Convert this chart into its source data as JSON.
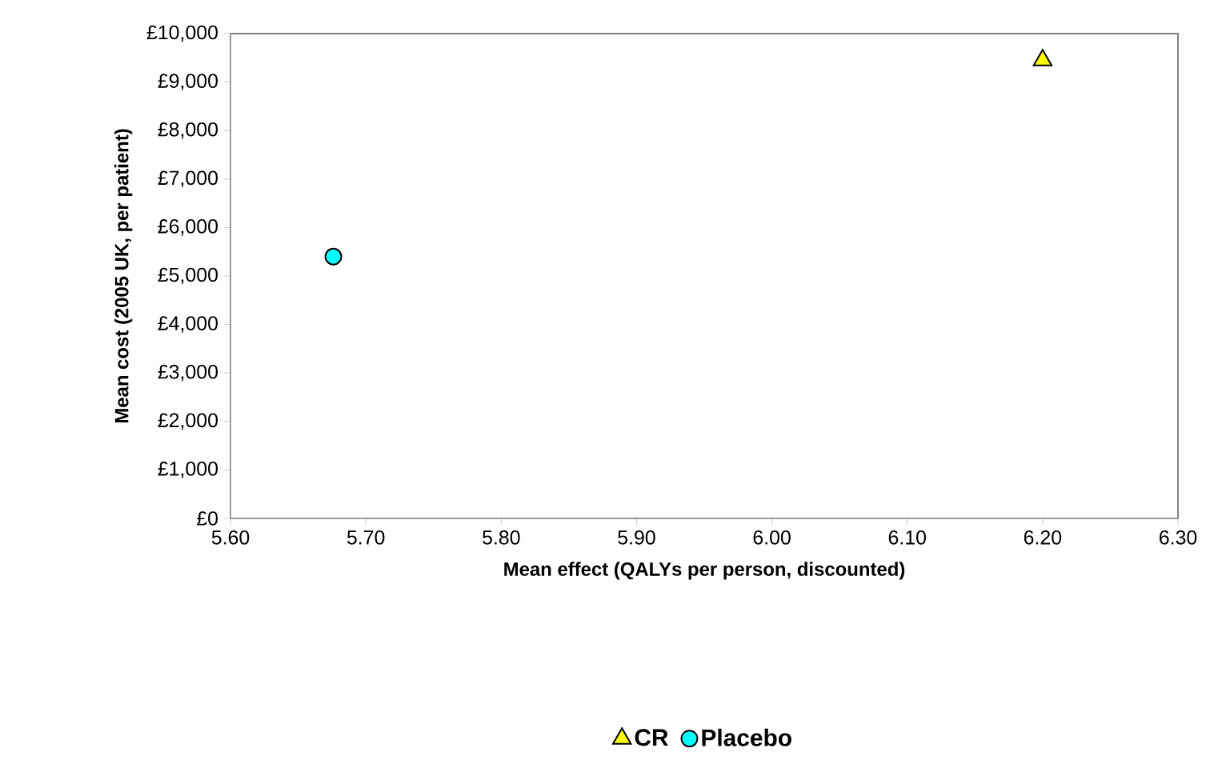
{
  "chart_data": {
    "type": "scatter",
    "xlabel": "Mean effect (QALYs per person, discounted)",
    "ylabel": "Mean cost (2005 UK, per patient)",
    "series": [
      {
        "name": "CR",
        "color": "#ffff00",
        "marker": "triangle",
        "x": [
          6.2
        ],
        "values": [
          9450
        ]
      },
      {
        "name": "Placebo",
        "color": "#00ffff",
        "marker": "circle",
        "x": [
          5.676
        ],
        "values": [
          5400
        ]
      }
    ],
    "xlim": [
      5.6,
      6.3
    ],
    "xticks": [
      {
        "value": 5.6,
        "label": "5.60"
      },
      {
        "value": 5.7,
        "label": "5.70"
      },
      {
        "value": 5.8,
        "label": "5.80"
      },
      {
        "value": 5.9,
        "label": "5.90"
      },
      {
        "value": 6.0,
        "label": "6.00"
      },
      {
        "value": 6.1,
        "label": "6.10"
      },
      {
        "value": 6.2,
        "label": "6.20"
      },
      {
        "value": 6.3,
        "label": "6.30"
      }
    ],
    "ylim": [
      0,
      10000
    ],
    "yticks": [
      {
        "value": 0,
        "label": "£0"
      },
      {
        "value": 1000,
        "label": "£1,000"
      },
      {
        "value": 2000,
        "label": "£2,000"
      },
      {
        "value": 3000,
        "label": "£3,000"
      },
      {
        "value": 4000,
        "label": "£4,000"
      },
      {
        "value": 5000,
        "label": "£5,000"
      },
      {
        "value": 6000,
        "label": "£6,000"
      },
      {
        "value": 7000,
        "label": "£7,000"
      },
      {
        "value": 8000,
        "label": "£8,000"
      },
      {
        "value": 9000,
        "label": "£9,000"
      },
      {
        "value": 10000,
        "label": "£10,000"
      }
    ],
    "grid": false,
    "legend": "bottom"
  }
}
